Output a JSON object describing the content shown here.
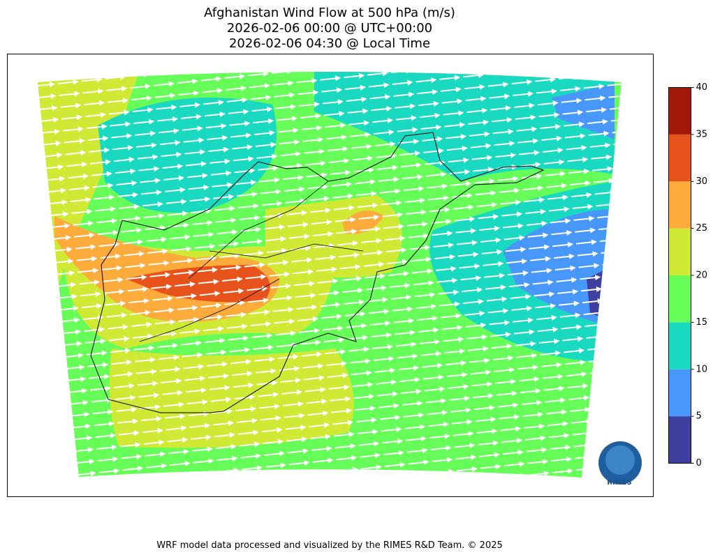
{
  "title": [
    "Afghanistan Wind Flow at 500 hPa (m/s)",
    "2026-02-06 00:00 @ UTC+00:00",
    "2026-02-06 04:30 @ Local Time"
  ],
  "colorbar": {
    "lim": [
      0,
      40
    ],
    "ticks": [
      0,
      5,
      10,
      15,
      20,
      25,
      30,
      35,
      40
    ],
    "colors": [
      "#3e3f9e",
      "#4898fc",
      "#1ad9c1",
      "#66fd58",
      "#cfe935",
      "#fdab3a",
      "#e8531b",
      "#a3190a"
    ]
  },
  "logo": "RIMES",
  "footer": "WRF model data processed and visualized by the RIMES R&D Team. © 2025"
}
